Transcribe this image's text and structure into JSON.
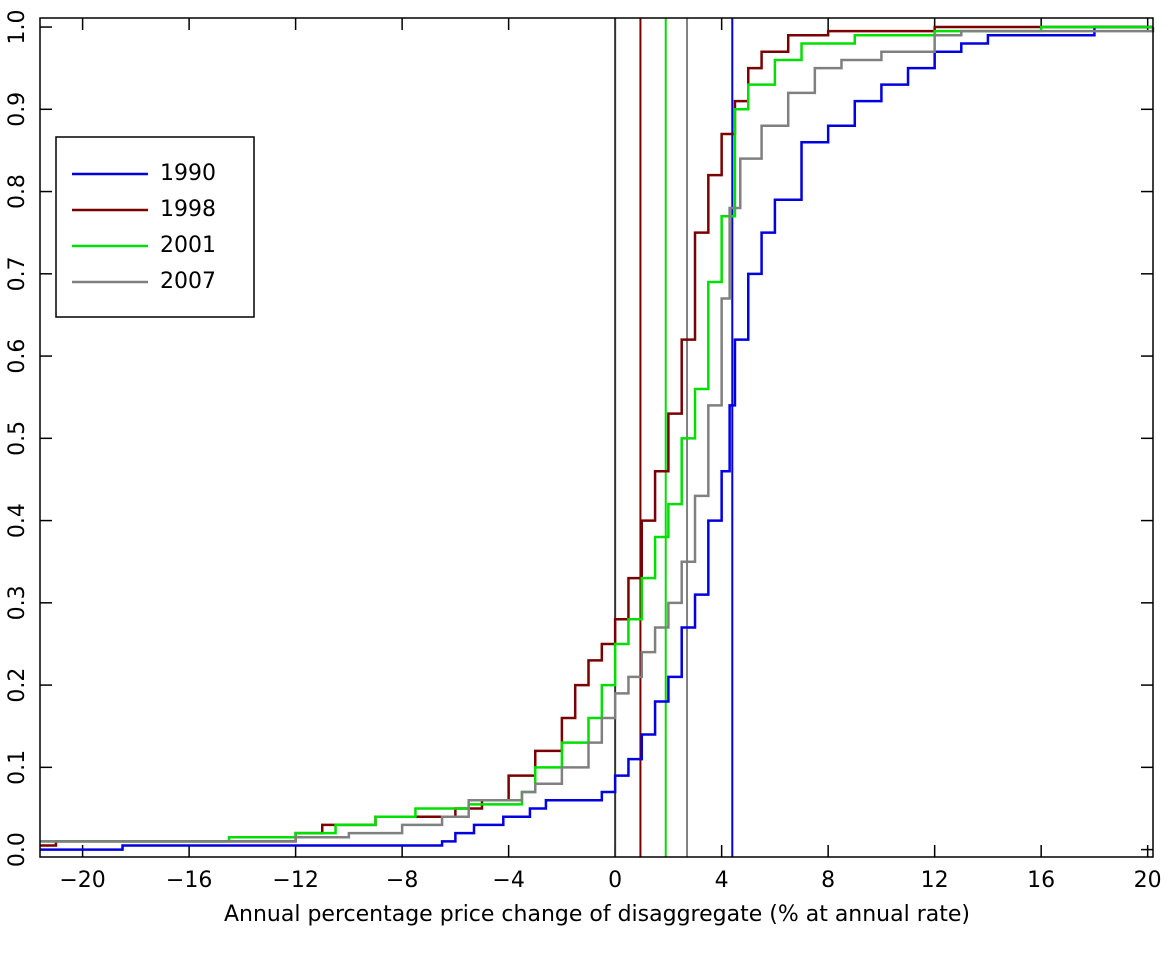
{
  "chart_data": {
    "type": "step",
    "xlabel": "Annual percentage price change of disaggregate (% at annual rate)",
    "xlim": [
      -21.6,
      20.2
    ],
    "ylim": [
      -0.009,
      1.011
    ],
    "xticks": [
      {
        "value": -20,
        "label": "−20"
      },
      {
        "value": -16,
        "label": "−16"
      },
      {
        "value": -12,
        "label": "−12"
      },
      {
        "value": -8,
        "label": "−8"
      },
      {
        "value": -4,
        "label": "−4"
      },
      0,
      4,
      8,
      12,
      16,
      20
    ],
    "yticks": [
      {
        "value": 0,
        "label": "0.0"
      },
      0.1,
      0.2,
      0.3,
      0.4,
      0.5,
      0.6,
      0.7,
      0.8,
      0.9,
      {
        "value": 1,
        "label": "1.0"
      }
    ],
    "legend": "upper left",
    "vlines": [
      {
        "x": 0,
        "color": "#333333"
      },
      {
        "x": 0.95,
        "color": "#7b0000"
      },
      {
        "x": 1.9,
        "color": "#00e000"
      },
      {
        "x": 2.7,
        "color": "#808080"
      },
      {
        "x": 4.4,
        "color": "#0000e0"
      }
    ],
    "series": [
      {
        "name": "1990",
        "color": "#0000e0",
        "x": [
          -21.6,
          -18.5,
          -6.5,
          -6,
          -5.3,
          -4.2,
          -3.2,
          -2.6,
          -0.5,
          0,
          0.5,
          1,
          1.5,
          2,
          2.5,
          3,
          3.5,
          4,
          4.3,
          4.5,
          5,
          5.5,
          6,
          7,
          8,
          9,
          10,
          11,
          12,
          13,
          14,
          18,
          20.2
        ],
        "values": [
          0.0,
          0.005,
          0.01,
          0.02,
          0.03,
          0.04,
          0.05,
          0.06,
          0.07,
          0.09,
          0.11,
          0.14,
          0.18,
          0.21,
          0.27,
          0.31,
          0.4,
          0.46,
          0.54,
          0.62,
          0.7,
          0.75,
          0.79,
          0.86,
          0.88,
          0.91,
          0.93,
          0.95,
          0.97,
          0.98,
          0.99,
          1.0,
          1.0
        ]
      },
      {
        "name": "1998",
        "color": "#7b0000",
        "x": [
          -21.6,
          -21,
          -12,
          -11,
          -9,
          -6,
          -5,
          -4,
          -3,
          -2,
          -1.5,
          -1,
          -0.5,
          0,
          0.5,
          1,
          1.5,
          2,
          2.5,
          3,
          3.5,
          4,
          4.5,
          5,
          5.5,
          6.5,
          8,
          12,
          20.2
        ],
        "values": [
          0.005,
          0.01,
          0.02,
          0.03,
          0.04,
          0.05,
          0.06,
          0.09,
          0.12,
          0.16,
          0.2,
          0.23,
          0.25,
          0.28,
          0.33,
          0.4,
          0.46,
          0.53,
          0.62,
          0.75,
          0.82,
          0.87,
          0.91,
          0.95,
          0.97,
          0.99,
          0.995,
          1.0,
          1.0
        ]
      },
      {
        "name": "2001",
        "color": "#00e000",
        "x": [
          -21.6,
          -14.5,
          -12,
          -10.5,
          -9,
          -7.5,
          -5.5,
          -3.5,
          -3,
          -2,
          -1,
          -0.5,
          0,
          0.5,
          1,
          1.5,
          2,
          2.5,
          3,
          3.5,
          4,
          4.5,
          5,
          6,
          7,
          9,
          12,
          16,
          20.2
        ],
        "values": [
          0.01,
          0.015,
          0.02,
          0.03,
          0.04,
          0.05,
          0.055,
          0.07,
          0.1,
          0.13,
          0.16,
          0.2,
          0.25,
          0.28,
          0.33,
          0.38,
          0.42,
          0.5,
          0.56,
          0.69,
          0.77,
          0.9,
          0.93,
          0.96,
          0.98,
          0.99,
          0.995,
          1.0,
          1.0
        ]
      },
      {
        "name": "2007",
        "color": "#808080",
        "x": [
          -21.6,
          -12,
          -10,
          -8,
          -6.5,
          -5.5,
          -3.5,
          -3,
          -2,
          -1,
          -0.5,
          0,
          0.5,
          1,
          1.5,
          2,
          2.5,
          3,
          3.5,
          4,
          4.3,
          4.7,
          5.5,
          6.5,
          7.5,
          8.5,
          10,
          12,
          13,
          20.2
        ],
        "values": [
          0.01,
          0.015,
          0.02,
          0.03,
          0.04,
          0.06,
          0.07,
          0.08,
          0.1,
          0.13,
          0.16,
          0.19,
          0.21,
          0.24,
          0.27,
          0.3,
          0.35,
          0.43,
          0.54,
          0.67,
          0.78,
          0.84,
          0.88,
          0.92,
          0.95,
          0.96,
          0.97,
          0.99,
          0.995,
          1.0
        ]
      }
    ]
  }
}
